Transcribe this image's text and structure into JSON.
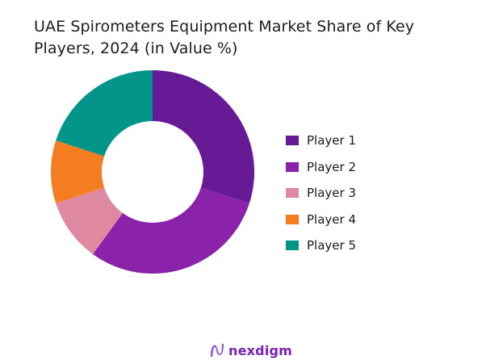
{
  "title": "UAE Spirometers Equipment Market Share of Key Players, 2024 (in Value %)",
  "chart_data": {
    "type": "pie",
    "subtype": "donut",
    "title": "UAE Spirometers Equipment Market Share of Key Players, 2024 (in Value %)",
    "categories": [
      "Player 1",
      "Player 2",
      "Player 3",
      "Player 4",
      "Player 5"
    ],
    "values": [
      30,
      30,
      10,
      10,
      20
    ],
    "colors": [
      "#671a96",
      "#8b22aa",
      "#de89a1",
      "#f47d21",
      "#03958a"
    ],
    "legend_position": "right",
    "start_angle": 0,
    "direction": "clockwise"
  },
  "legend": {
    "items": [
      {
        "label": "Player 1",
        "color": "#671a96"
      },
      {
        "label": "Player 2",
        "color": "#8b22aa"
      },
      {
        "label": "Player 3",
        "color": "#de89a1"
      },
      {
        "label": "Player 4",
        "color": "#f47d21"
      },
      {
        "label": "Player 5",
        "color": "#03958a"
      }
    ]
  },
  "brand": {
    "name": "nexdigm",
    "color": "#7a1fb8"
  }
}
